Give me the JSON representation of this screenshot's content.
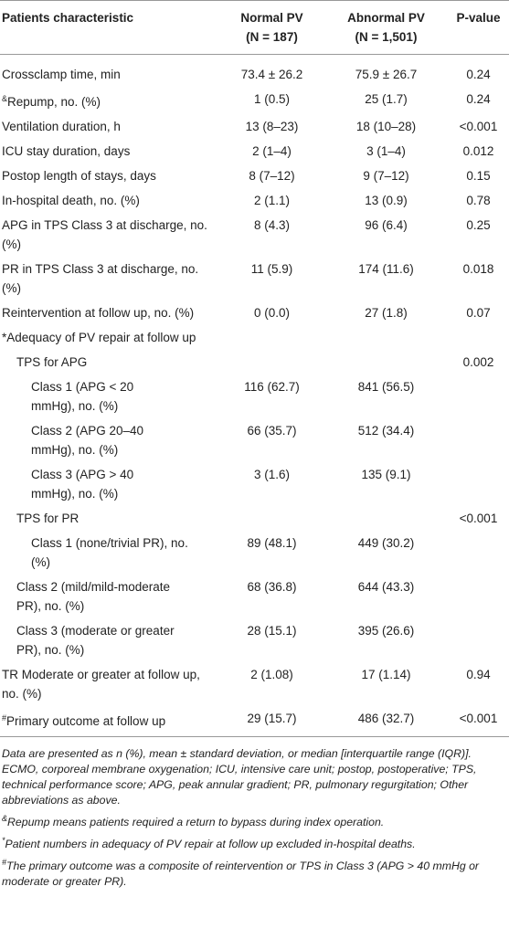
{
  "table": {
    "header": {
      "label": "Patients characteristic",
      "normal": "Normal PV",
      "normal_n": "(N = 187)",
      "abnormal": "Abnormal PV",
      "abnormal_n": "(N = 1,501)",
      "p": "P-value"
    },
    "rows": [
      {
        "label": "Crossclamp time, min",
        "normal": "73.4 ± 26.2",
        "abnormal": "75.9 ± 26.7",
        "p": "0.24"
      },
      {
        "mark": "&",
        "label": "Repump, no. (%)",
        "normal": "1 (0.5)",
        "abnormal": "25 (1.7)",
        "p": "0.24"
      },
      {
        "label": "Ventilation duration, h",
        "normal": "13 (8–23)",
        "abnormal": "18 (10–28)",
        "p": "<0.001"
      },
      {
        "label": "ICU stay duration, days",
        "normal": "2 (1–4)",
        "abnormal": "3 (1–4)",
        "p": "0.012"
      },
      {
        "label": "Postop length of stays, days",
        "normal": "8 (7–12)",
        "abnormal": "9 (7–12)",
        "p": "0.15"
      },
      {
        "label": "In-hospital death, no. (%)",
        "normal": "2 (1.1)",
        "abnormal": "13 (0.9)",
        "p": "0.78"
      },
      {
        "label": "APG in TPS Class 3 at discharge, no. (%)",
        "normal": "8 (4.3)",
        "abnormal": "96 (6.4)",
        "p": "0.25"
      },
      {
        "label": "PR in TPS Class 3 at discharge, no. (%)",
        "normal": "11 (5.9)",
        "abnormal": "174 (11.6)",
        "p": "0.018"
      },
      {
        "label": "Reintervention at follow up, no. (%)",
        "normal": "0 (0.0)",
        "abnormal": "27 (1.8)",
        "p": "0.07"
      },
      {
        "label": "*Adequacy of PV repair at follow up"
      },
      {
        "label": "TPS for APG",
        "p": "0.002"
      },
      {
        "label": "Class 1 (APG < 20 mmHg), no. (%)",
        "normal": "116 (62.7)",
        "abnormal": "841 (56.5)"
      },
      {
        "label": "Class 2 (APG 20–40 mmHg), no. (%)",
        "normal": "66 (35.7)",
        "abnormal": "512 (34.4)"
      },
      {
        "label": "Class 3 (APG > 40 mmHg), no. (%)",
        "normal": "3 (1.6)",
        "abnormal": "135 (9.1)"
      },
      {
        "label": "TPS for PR",
        "p": "<0.001"
      },
      {
        "label": "Class 1 (none/trivial PR), no. (%)",
        "normal": "89 (48.1)",
        "abnormal": "449 (30.2)"
      },
      {
        "label": "Class 2 (mild/mild-moderate PR), no. (%)",
        "normal": "68 (36.8)",
        "abnormal": "644 (43.3)"
      },
      {
        "label": "Class 3 (moderate or greater PR), no. (%)",
        "normal": "28 (15.1)",
        "abnormal": "395 (26.6)"
      },
      {
        "label": "TR Moderate or greater at follow up, no. (%)",
        "normal": "2 (1.08)",
        "abnormal": "17 (1.14)",
        "p": "0.94"
      },
      {
        "mark": "#",
        "label": "Primary outcome at follow up",
        "normal": "29 (15.7)",
        "abnormal": "486 (32.7)",
        "p": "<0.001"
      }
    ],
    "footnotes": [
      {
        "text": "Data are presented as n (%), mean ± standard deviation, or median [interquartile range (IQR)]. ECMO, corporeal membrane oxygenation; ICU, intensive care unit; postop, postoperative; TPS, technical performance score; APG, peak annular gradient; PR, pulmonary regurgitation; Other abbreviations as above."
      },
      {
        "mark": "&",
        "text": "Repump means patients required a return to bypass during index operation."
      },
      {
        "mark": "*",
        "text": "Patient numbers in adequacy of PV repair at follow up excluded in-hospital deaths."
      },
      {
        "mark": "#",
        "text": "The primary outcome was a composite of reintervention or TPS in Class 3 (APG > 40 mmHg or moderate or greater PR)."
      }
    ]
  }
}
